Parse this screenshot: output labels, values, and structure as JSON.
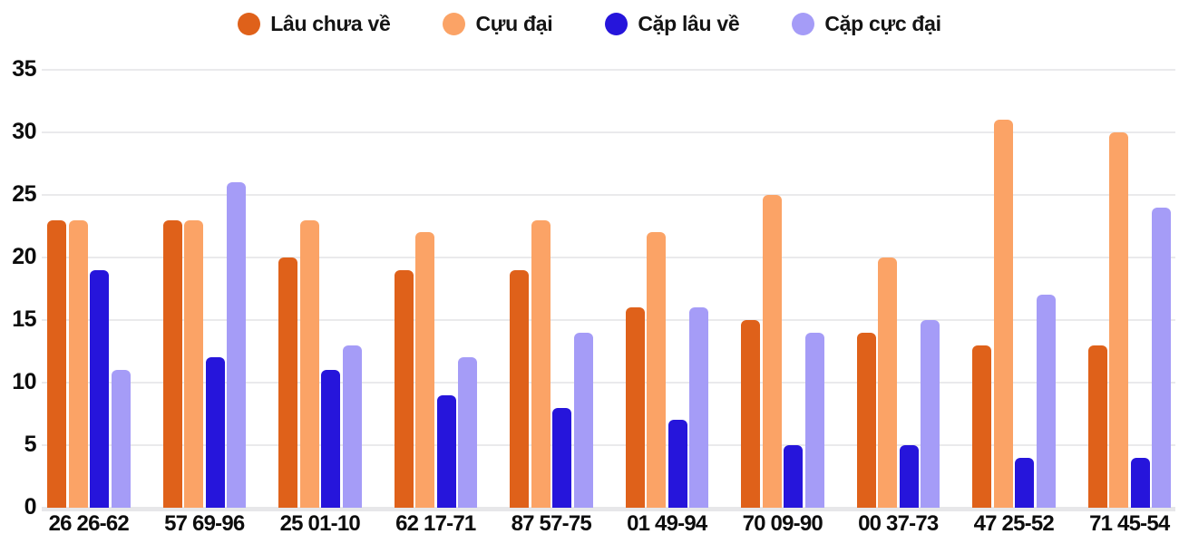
{
  "chart_data": {
    "type": "bar",
    "title": "",
    "xlabel": "",
    "ylabel": "",
    "ylim": [
      0,
      35
    ],
    "yticks": [
      0,
      5,
      10,
      15,
      20,
      25,
      30,
      35
    ],
    "grid": true,
    "legend_position": "top-center",
    "categories": [
      "26 26-62",
      "57 69-96",
      "25 01-10",
      "62 17-71",
      "87 57-75",
      "01 49-94",
      "70 09-90",
      "00 37-73",
      "47 25-52",
      "71 45-54"
    ],
    "series": [
      {
        "name": "Lâu chưa về",
        "color": "#df611a",
        "values": [
          23,
          23,
          20,
          19,
          19,
          16,
          15,
          14,
          13,
          13
        ]
      },
      {
        "name": "Cựu đại",
        "color": "#fba366",
        "values": [
          23,
          23,
          23,
          22,
          23,
          22,
          25,
          20,
          31,
          30
        ]
      },
      {
        "name": "Cặp lâu về",
        "color": "#2615db",
        "values": [
          19,
          12,
          11,
          9,
          8,
          7,
          5,
          5,
          4,
          4
        ]
      },
      {
        "name": "Cặp cực đại",
        "color": "#a59cf7",
        "values": [
          11,
          26,
          13,
          12,
          14,
          16,
          14,
          15,
          17,
          24
        ]
      }
    ]
  },
  "colors": {
    "background": "#ffffff",
    "grid": "#eaeaec",
    "baseline": "#e7e7e9",
    "axis_text": "#0d0d0d",
    "legend_text": "#141414"
  }
}
